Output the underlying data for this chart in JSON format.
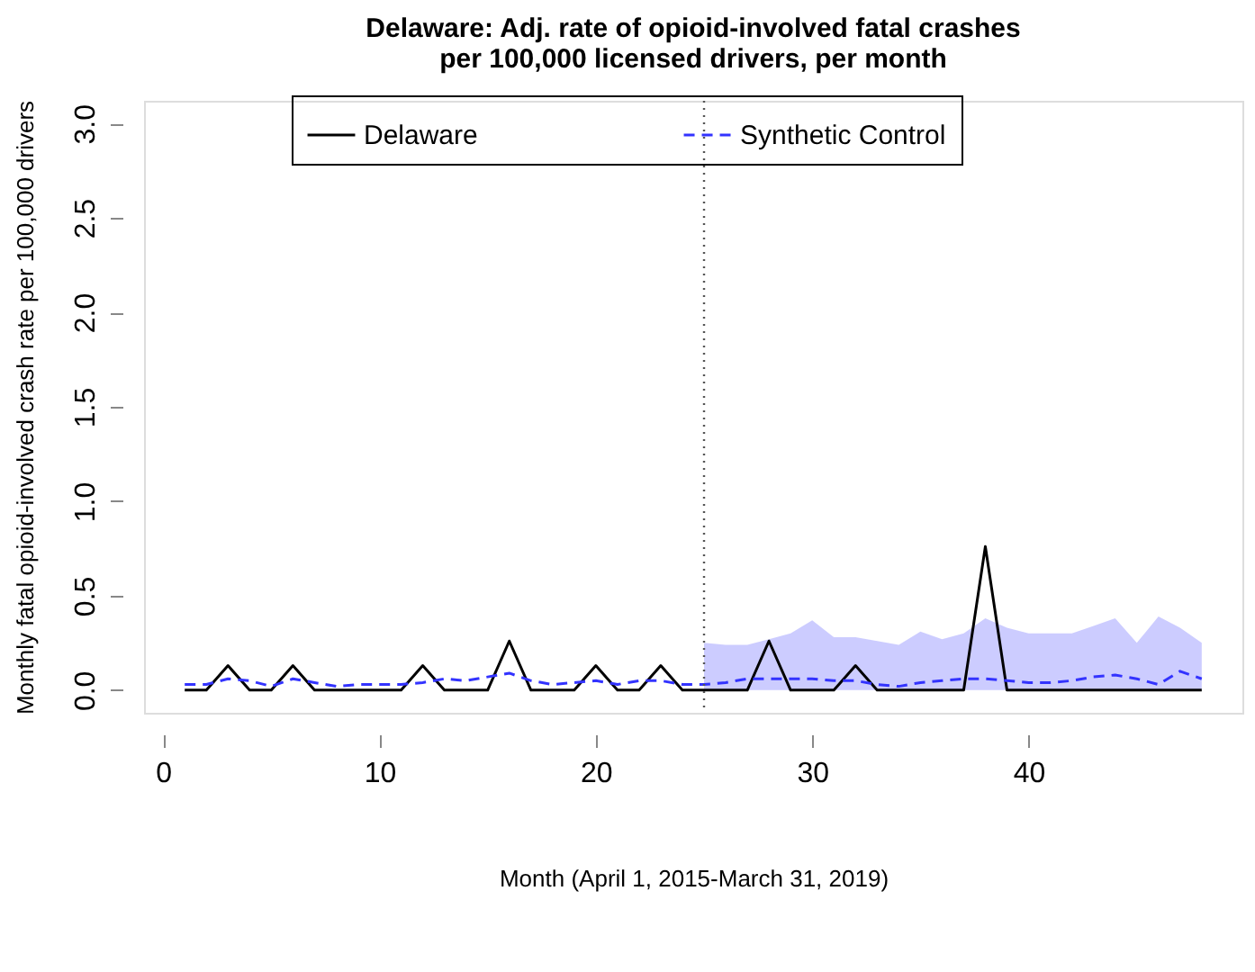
{
  "chart_data": {
    "type": "line",
    "title": [
      "Delaware: Adj. rate of opioid-involved fatal crashes",
      "per 100,000 licensed drivers, per month"
    ],
    "xlabel": "Month (April 1, 2015-March 31, 2019)",
    "ylabel": "Monthly fatal opioid-involved crash rate per 100,000 drivers",
    "x": [
      1,
      2,
      3,
      4,
      5,
      6,
      7,
      8,
      9,
      10,
      11,
      12,
      13,
      14,
      15,
      16,
      17,
      18,
      19,
      20,
      21,
      22,
      23,
      24,
      25,
      26,
      27,
      28,
      29,
      30,
      31,
      32,
      33,
      34,
      35,
      36,
      37,
      38,
      39,
      40,
      41,
      42,
      43,
      44,
      45,
      46,
      47,
      48
    ],
    "series": [
      {
        "name": "Delaware",
        "color": "#000000",
        "line_style": "solid",
        "values": [
          0,
          0,
          0.13,
          0,
          0,
          0.13,
          0,
          0,
          0,
          0,
          0,
          0.13,
          0,
          0,
          0,
          0.26,
          0,
          0,
          0,
          0.13,
          0,
          0,
          0.13,
          0,
          0,
          0,
          0,
          0.26,
          0,
          0,
          0,
          0.13,
          0,
          0,
          0,
          0,
          0,
          0.76,
          0,
          0,
          0,
          0,
          0,
          0,
          0,
          0,
          0,
          0
        ]
      },
      {
        "name": "Synthetic Control",
        "color": "#3333ff",
        "line_style": "dashed",
        "values": [
          0.03,
          0.03,
          0.06,
          0.05,
          0.02,
          0.06,
          0.04,
          0.02,
          0.03,
          0.03,
          0.03,
          0.04,
          0.06,
          0.05,
          0.07,
          0.09,
          0.05,
          0.03,
          0.04,
          0.05,
          0.03,
          0.05,
          0.05,
          0.03,
          0.03,
          0.04,
          0.06,
          0.06,
          0.06,
          0.06,
          0.05,
          0.05,
          0.03,
          0.02,
          0.04,
          0.05,
          0.06,
          0.06,
          0.05,
          0.04,
          0.04,
          0.05,
          0.07,
          0.08,
          0.06,
          0.03,
          0.1,
          0.06
        ],
        "lower": [
          null,
          null,
          null,
          null,
          null,
          null,
          null,
          null,
          null,
          null,
          null,
          null,
          null,
          null,
          null,
          null,
          null,
          null,
          null,
          null,
          null,
          null,
          null,
          null,
          0,
          0,
          0,
          0,
          0,
          0,
          0,
          0,
          0,
          0,
          0,
          0,
          0,
          0,
          0,
          0,
          0,
          0,
          0,
          0,
          0,
          0,
          0,
          0
        ],
        "upper": [
          null,
          null,
          null,
          null,
          null,
          null,
          null,
          null,
          null,
          null,
          null,
          null,
          null,
          null,
          null,
          null,
          null,
          null,
          null,
          null,
          null,
          null,
          null,
          null,
          0.25,
          0.24,
          0.24,
          0.27,
          0.3,
          0.37,
          0.28,
          0.28,
          0.26,
          0.24,
          0.31,
          0.27,
          0.3,
          0.38,
          0.33,
          0.3,
          0.3,
          0.3,
          0.34,
          0.38,
          0.25,
          0.39,
          0.33,
          0.25
        ]
      }
    ],
    "xlim": [
      -0.88,
      49.88
    ],
    "xticks": [
      0,
      10,
      20,
      30,
      40
    ],
    "ylim": [
      -0.12,
      3.12
    ],
    "yticks": [
      {
        "value": 0,
        "label": "0.0"
      },
      {
        "value": 0.5,
        "label": "0.5"
      },
      {
        "value": 1,
        "label": "1.0"
      },
      {
        "value": 1.5,
        "label": "1.5"
      },
      {
        "value": 2,
        "label": "2.0"
      },
      {
        "value": 2.5,
        "label": "2.5"
      },
      {
        "value": 3,
        "label": "3.0"
      }
    ],
    "ref_lines": [
      {
        "axis": "x",
        "value": 25,
        "color": "#555555",
        "line_style": "dotted"
      }
    ],
    "legend": "top",
    "grid": false,
    "marker": "none"
  }
}
